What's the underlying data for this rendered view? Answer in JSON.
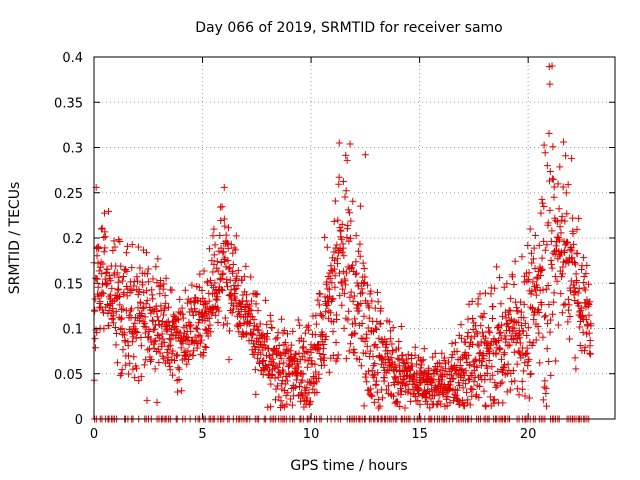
{
  "chart_data": {
    "type": "scatter",
    "title": "Day 066 of 2019, SRMTID for receiver samo",
    "xlabel": "GPS time / hours",
    "ylabel": "SRMTID / TECUs",
    "xlim": [
      0,
      24
    ],
    "ylim": [
      0,
      0.4
    ],
    "xticks": [
      0,
      5,
      10,
      15,
      20
    ],
    "xtick_labels": [
      "0",
      "5",
      "10",
      "15",
      "20"
    ],
    "yticks": [
      0,
      0.05,
      0.1,
      0.15,
      0.2,
      0.25,
      0.3,
      0.35,
      0.4
    ],
    "ytick_labels": [
      "0",
      "0.05",
      "0.1",
      "0.15",
      "0.2",
      "0.25",
      "0.3",
      "0.35",
      "0.4"
    ],
    "grid": true,
    "marker": "+",
    "color": "#e00000",
    "time_range_hours": [
      0,
      22.9
    ],
    "envelope": {
      "description": "approximate typical (median) and peak SRMTID value per hour, read from the scatter",
      "hours": [
        0,
        0.5,
        1,
        2,
        3,
        4,
        5,
        6,
        6.5,
        7,
        8,
        9,
        10,
        11,
        11.5,
        12,
        13,
        14,
        15,
        16,
        17,
        18,
        19,
        20,
        20.5,
        21,
        21.5,
        22,
        22.9
      ],
      "typical": [
        0.12,
        0.17,
        0.13,
        0.11,
        0.1,
        0.09,
        0.11,
        0.17,
        0.15,
        0.12,
        0.06,
        0.05,
        0.05,
        0.13,
        0.18,
        0.14,
        0.07,
        0.05,
        0.04,
        0.04,
        0.05,
        0.07,
        0.08,
        0.1,
        0.14,
        0.18,
        0.2,
        0.17,
        0.1
      ],
      "peak": [
        0.2,
        0.26,
        0.22,
        0.19,
        0.18,
        0.15,
        0.16,
        0.26,
        0.22,
        0.17,
        0.13,
        0.1,
        0.11,
        0.24,
        0.305,
        0.29,
        0.15,
        0.1,
        0.08,
        0.08,
        0.12,
        0.15,
        0.16,
        0.2,
        0.23,
        0.39,
        0.33,
        0.29,
        0.15
      ]
    },
    "notable_points": [
      {
        "x": 0.1,
        "y": 0.256
      },
      {
        "x": 6.0,
        "y": 0.256
      },
      {
        "x": 11.3,
        "y": 0.305
      },
      {
        "x": 12.5,
        "y": 0.292
      },
      {
        "x": 21.1,
        "y": 0.39
      },
      {
        "x": 21.0,
        "y": 0.37
      },
      {
        "x": 22.0,
        "y": 0.288
      }
    ],
    "zero_baseline": {
      "description": "many samples plotted at y = 0 spread across the observation period",
      "y": 0,
      "x_range": [
        0,
        22.8
      ]
    }
  }
}
